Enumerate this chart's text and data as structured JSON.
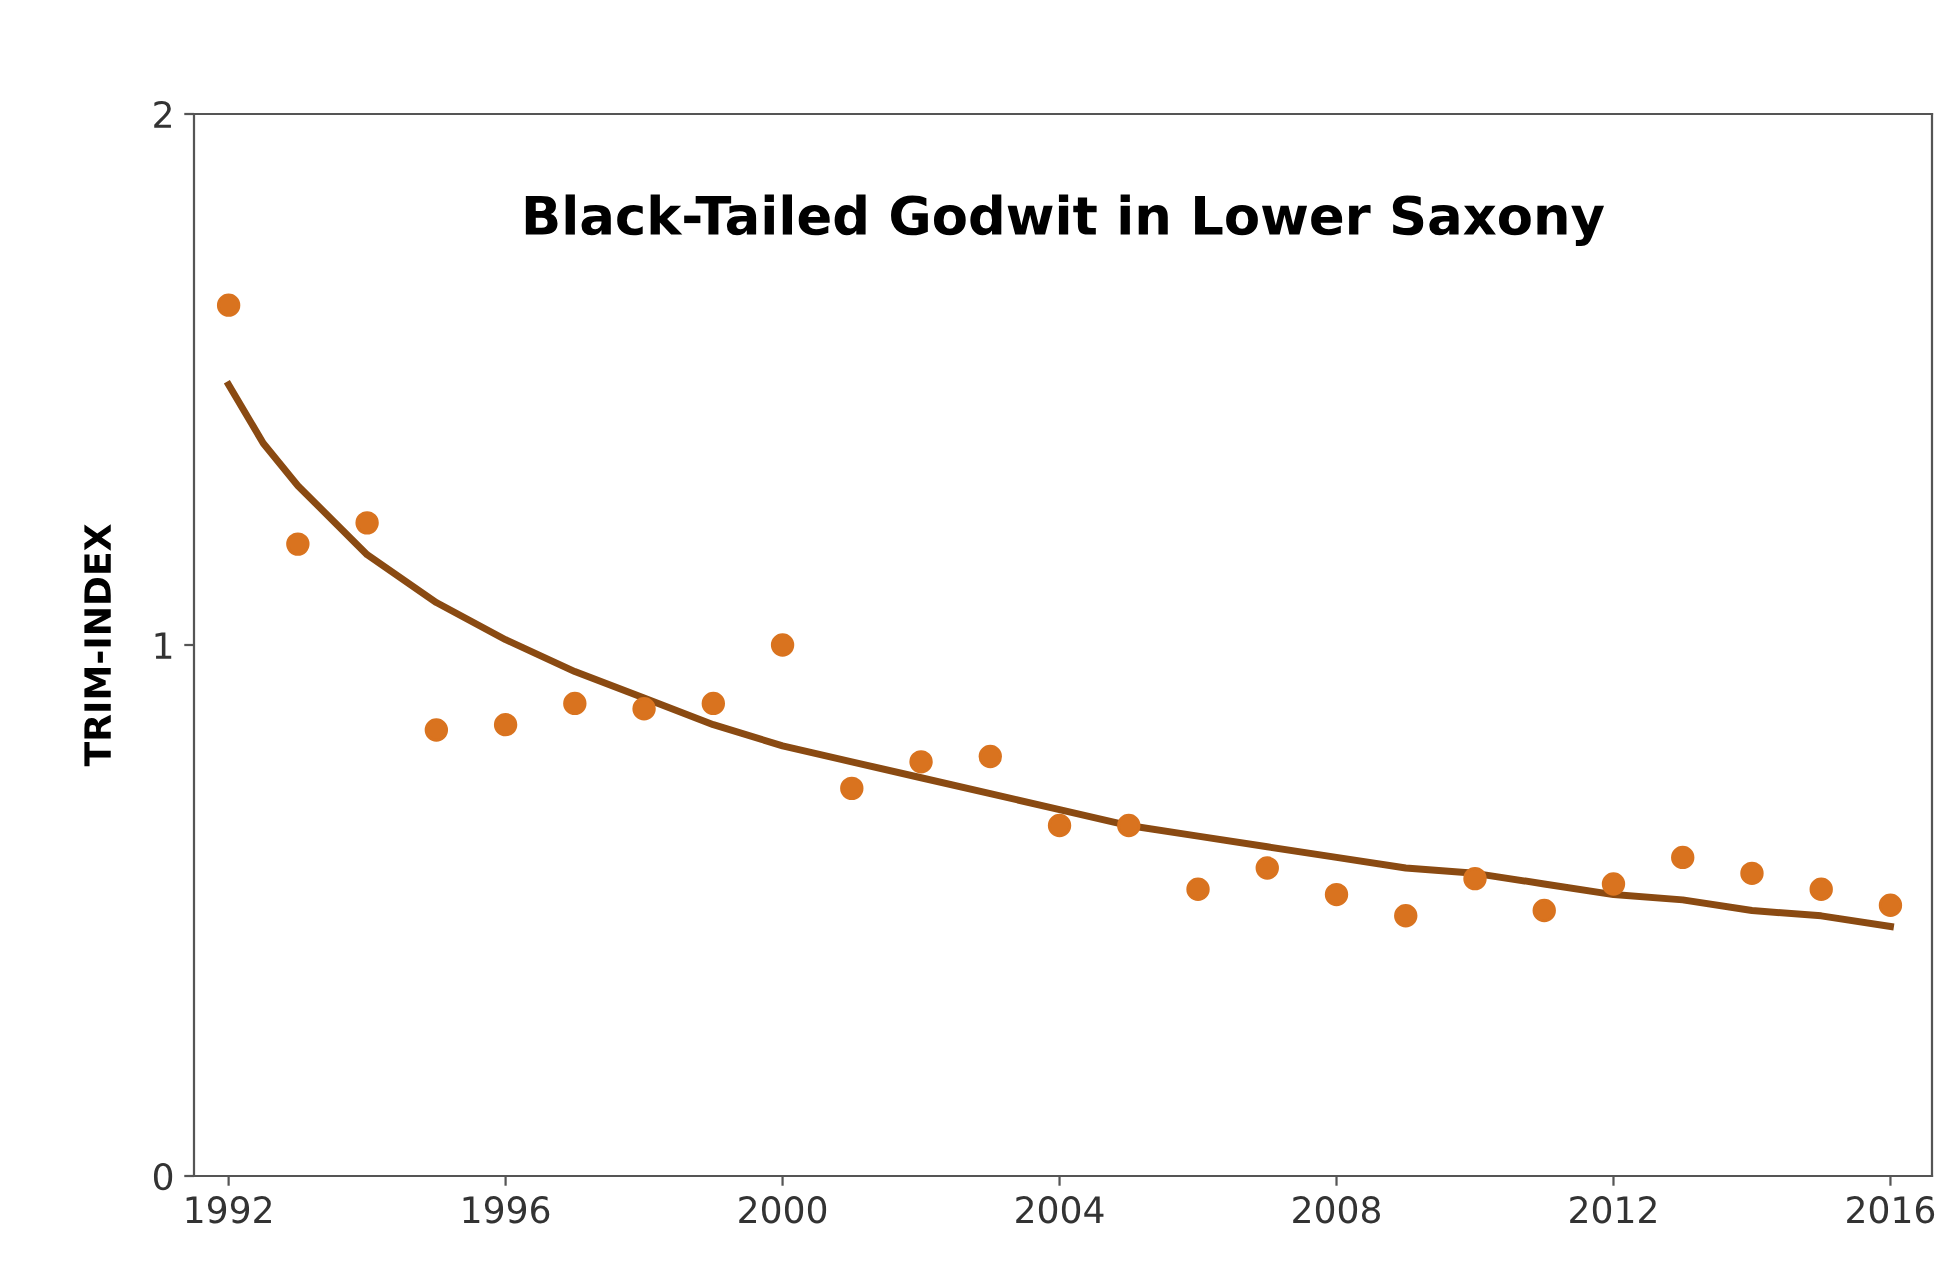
{
  "chart_data": {
    "type": "scatter",
    "title": "Black-Tailed Godwit in Lower Saxony",
    "ylabel": "TRIM-INDEX",
    "xlim": [
      1991.5,
      2016.6
    ],
    "xticks": [
      1992,
      1996,
      2000,
      2004,
      2008,
      2012,
      2016
    ],
    "ylim": [
      0,
      2
    ],
    "yticks": [
      0,
      1,
      2
    ],
    "grid": false,
    "legend": false,
    "series": [
      {
        "marker": "circle",
        "color": "#d9731f",
        "x": [
          1992,
          1993,
          1994,
          1995,
          1996,
          1997,
          1998,
          1999,
          2000,
          2001,
          2002,
          2003,
          2004,
          2005,
          2006,
          2007,
          2008,
          2009,
          2010,
          2011,
          2012,
          2013,
          2014,
          2015,
          2016
        ],
        "values": [
          1.64,
          1.19,
          1.23,
          0.84,
          0.85,
          0.89,
          0.88,
          0.89,
          1.0,
          0.73,
          0.78,
          0.79,
          0.66,
          0.66,
          0.54,
          0.58,
          0.53,
          0.49,
          0.56,
          0.5,
          0.55,
          0.6,
          0.57,
          0.54,
          0.51
        ]
      },
      {
        "type": "line",
        "color": "#8a4a12",
        "marker": "none",
        "x": [
          1992,
          1992.5,
          1993,
          1994,
          1995,
          1996,
          1997,
          1998,
          1999,
          2000,
          2001,
          2002,
          2003,
          2004,
          2005,
          2006,
          2007,
          2008,
          2009,
          2010,
          2011,
          2012,
          2013,
          2014,
          2015,
          2016
        ],
        "values": [
          1.49,
          1.38,
          1.3,
          1.17,
          1.08,
          1.01,
          0.95,
          0.9,
          0.85,
          0.81,
          0.78,
          0.75,
          0.72,
          0.69,
          0.66,
          0.64,
          0.62,
          0.6,
          0.58,
          0.57,
          0.55,
          0.53,
          0.52,
          0.5,
          0.49,
          0.47
        ]
      }
    ]
  }
}
